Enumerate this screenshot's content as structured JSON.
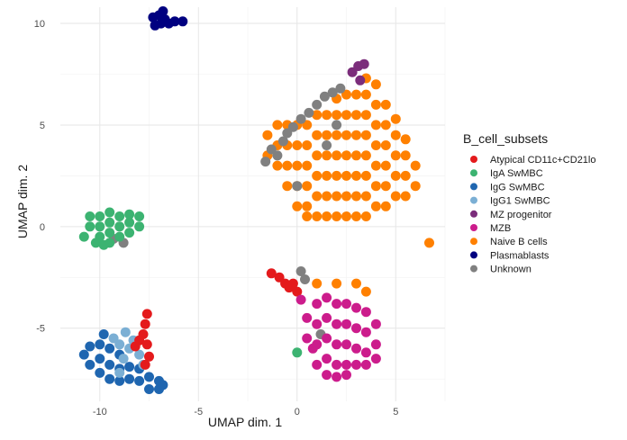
{
  "chart_data": {
    "type": "scatter",
    "title": "",
    "xlabel": "UMAP dim. 1",
    "ylabel": "UMAP dim. 2",
    "xlim": [
      -12.0,
      7.5
    ],
    "ylim": [
      -8.6,
      10.8
    ],
    "x_ticks": [
      -10,
      -5,
      0,
      5
    ],
    "y_ticks": [
      -5,
      0,
      5,
      10
    ],
    "x_tick_labels": [
      "-10",
      "-5",
      "0",
      "5"
    ],
    "y_tick_labels": [
      "-5",
      "0",
      "5",
      "10"
    ],
    "grid": true,
    "legend": {
      "title": "B_cell_subsets",
      "position": "right",
      "entries": [
        {
          "label": "Atypical CD11c+CD21lo",
          "color": "#E41A1C"
        },
        {
          "label": "IgA SwMBC",
          "color": "#3CB371"
        },
        {
          "label": "IgG SwMBC",
          "color": "#1F66B0"
        },
        {
          "label": "IgG1 SwMBC",
          "color": "#7BAFD4"
        },
        {
          "label": "MZ progenitor",
          "color": "#7B2D7B"
        },
        {
          "label": "MZB",
          "color": "#CC1C8C"
        },
        {
          "label": "Naive B cells",
          "color": "#FF8000"
        },
        {
          "label": "Plasmablasts",
          "color": "#000080"
        },
        {
          "label": "Unknown",
          "color": "#808080"
        }
      ]
    },
    "series": [
      {
        "name": "Naive B cells",
        "color": "#FF8000",
        "points": [
          [
            -1.5,
            3.5
          ],
          [
            -1.5,
            4.5
          ],
          [
            -1.0,
            3.0
          ],
          [
            -1.0,
            4.0
          ],
          [
            -1.0,
            5.0
          ],
          [
            -0.5,
            2.0
          ],
          [
            -0.5,
            3.0
          ],
          [
            -0.5,
            4.0
          ],
          [
            -0.5,
            5.0
          ],
          [
            0.0,
            1.0
          ],
          [
            0.0,
            2.0
          ],
          [
            0.0,
            3.0
          ],
          [
            0.0,
            4.0
          ],
          [
            0.0,
            5.0
          ],
          [
            0.5,
            1.0
          ],
          [
            0.5,
            2.0
          ],
          [
            0.5,
            3.0
          ],
          [
            0.5,
            4.0
          ],
          [
            0.5,
            5.0
          ],
          [
            1.0,
            0.5
          ],
          [
            1.0,
            1.5
          ],
          [
            1.0,
            2.5
          ],
          [
            1.0,
            3.5
          ],
          [
            1.0,
            4.5
          ],
          [
            1.0,
            5.5
          ],
          [
            1.5,
            0.5
          ],
          [
            1.5,
            1.5
          ],
          [
            1.5,
            2.5
          ],
          [
            1.5,
            3.5
          ],
          [
            1.5,
            4.5
          ],
          [
            1.5,
            5.5
          ],
          [
            2.0,
            0.5
          ],
          [
            2.0,
            1.5
          ],
          [
            2.0,
            2.5
          ],
          [
            2.0,
            3.5
          ],
          [
            2.0,
            4.5
          ],
          [
            2.0,
            5.5
          ],
          [
            2.0,
            6.3
          ],
          [
            2.5,
            0.5
          ],
          [
            2.5,
            1.5
          ],
          [
            2.5,
            2.5
          ],
          [
            2.5,
            3.5
          ],
          [
            2.5,
            4.5
          ],
          [
            2.5,
            5.5
          ],
          [
            2.5,
            6.5
          ],
          [
            3.0,
            0.5
          ],
          [
            3.0,
            1.5
          ],
          [
            3.0,
            2.5
          ],
          [
            3.0,
            3.5
          ],
          [
            3.0,
            4.5
          ],
          [
            3.0,
            5.5
          ],
          [
            3.0,
            6.5
          ],
          [
            3.5,
            0.5
          ],
          [
            3.5,
            1.5
          ],
          [
            3.5,
            2.5
          ],
          [
            3.5,
            3.5
          ],
          [
            3.5,
            4.5
          ],
          [
            3.5,
            5.5
          ],
          [
            3.5,
            6.5
          ],
          [
            3.5,
            7.3
          ],
          [
            4.0,
            1.0
          ],
          [
            4.0,
            2.0
          ],
          [
            4.0,
            3.0
          ],
          [
            4.0,
            4.0
          ],
          [
            4.0,
            5.0
          ],
          [
            4.0,
            6.0
          ],
          [
            4.0,
            7.0
          ],
          [
            4.5,
            1.0
          ],
          [
            4.5,
            2.0
          ],
          [
            4.5,
            3.0
          ],
          [
            4.5,
            4.0
          ],
          [
            4.5,
            5.0
          ],
          [
            4.5,
            6.0
          ],
          [
            5.0,
            1.5
          ],
          [
            5.0,
            2.5
          ],
          [
            5.0,
            3.5
          ],
          [
            5.0,
            4.5
          ],
          [
            5.0,
            5.3
          ],
          [
            5.5,
            1.5
          ],
          [
            5.5,
            2.5
          ],
          [
            5.5,
            3.5
          ],
          [
            5.5,
            4.3
          ],
          [
            6.0,
            2.0
          ],
          [
            6.0,
            3.0
          ],
          [
            0.5,
            0.5
          ],
          [
            6.7,
            -0.8
          ],
          [
            1.0,
            -2.8
          ],
          [
            2.0,
            -2.8
          ],
          [
            3.0,
            -2.8
          ],
          [
            3.5,
            -3.2
          ]
        ]
      },
      {
        "name": "Unknown",
        "color": "#808080",
        "points": [
          [
            -1.6,
            3.2
          ],
          [
            -1.3,
            3.8
          ],
          [
            -1.0,
            3.5
          ],
          [
            -0.7,
            4.2
          ],
          [
            -0.5,
            4.6
          ],
          [
            -0.2,
            4.9
          ],
          [
            0.2,
            5.3
          ],
          [
            0.6,
            5.6
          ],
          [
            1.0,
            6.0
          ],
          [
            1.4,
            6.4
          ],
          [
            1.8,
            6.6
          ],
          [
            2.2,
            6.8
          ],
          [
            2.0,
            5.0
          ],
          [
            1.5,
            4.0
          ],
          [
            0.0,
            2.0
          ],
          [
            0.2,
            -2.2
          ],
          [
            0.4,
            -2.6
          ],
          [
            -9.3,
            -0.6
          ],
          [
            -8.8,
            -0.8
          ],
          [
            1.2,
            -5.3
          ]
        ]
      },
      {
        "name": "MZ progenitor",
        "color": "#7B2D7B",
        "points": [
          [
            2.8,
            7.6
          ],
          [
            3.1,
            7.9
          ],
          [
            3.4,
            8.0
          ],
          [
            3.2,
            7.2
          ]
        ]
      },
      {
        "name": "Plasmablasts",
        "color": "#000080",
        "points": [
          [
            -7.3,
            10.3
          ],
          [
            -7.0,
            10.4
          ],
          [
            -6.7,
            10.2
          ],
          [
            -6.9,
            10.0
          ],
          [
            -7.2,
            9.9
          ],
          [
            -6.5,
            10.0
          ],
          [
            -6.2,
            10.1
          ],
          [
            -5.8,
            10.1
          ],
          [
            -6.8,
            10.6
          ]
        ]
      },
      {
        "name": "IgA SwMBC",
        "color": "#3CB371",
        "points": [
          [
            -10.8,
            -0.5
          ],
          [
            -10.5,
            0.0
          ],
          [
            -10.5,
            0.5
          ],
          [
            -10.0,
            -0.5
          ],
          [
            -10.0,
            0.0
          ],
          [
            -10.0,
            0.5
          ],
          [
            -9.5,
            -0.8
          ],
          [
            -9.5,
            -0.3
          ],
          [
            -9.5,
            0.2
          ],
          [
            -9.5,
            0.7
          ],
          [
            -9.0,
            -0.5
          ],
          [
            -9.0,
            0.0
          ],
          [
            -9.0,
            0.5
          ],
          [
            -8.5,
            -0.3
          ],
          [
            -8.5,
            0.2
          ],
          [
            -8.5,
            0.6
          ],
          [
            -8.0,
            0.0
          ],
          [
            -8.0,
            0.5
          ],
          [
            -10.2,
            -0.8
          ],
          [
            -9.8,
            -0.9
          ],
          [
            0.0,
            -6.2
          ]
        ]
      },
      {
        "name": "IgG SwMBC",
        "color": "#1F66B0",
        "points": [
          [
            -10.8,
            -6.3
          ],
          [
            -10.5,
            -6.8
          ],
          [
            -10.5,
            -5.9
          ],
          [
            -10.0,
            -7.2
          ],
          [
            -10.0,
            -6.5
          ],
          [
            -10.0,
            -5.8
          ],
          [
            -9.5,
            -7.5
          ],
          [
            -9.5,
            -6.8
          ],
          [
            -9.5,
            -6.0
          ],
          [
            -9.0,
            -7.6
          ],
          [
            -9.0,
            -7.0
          ],
          [
            -9.0,
            -6.3
          ],
          [
            -8.5,
            -7.5
          ],
          [
            -8.5,
            -6.9
          ],
          [
            -8.0,
            -7.6
          ],
          [
            -8.0,
            -7.0
          ],
          [
            -7.5,
            -8.0
          ],
          [
            -7.5,
            -7.4
          ],
          [
            -7.0,
            -8.0
          ],
          [
            -7.0,
            -7.6
          ],
          [
            -6.8,
            -7.8
          ],
          [
            -9.8,
            -5.3
          ]
        ]
      },
      {
        "name": "IgG1 SwMBC",
        "color": "#7BAFD4",
        "points": [
          [
            -9.3,
            -5.5
          ],
          [
            -9.0,
            -5.8
          ],
          [
            -8.7,
            -5.2
          ],
          [
            -8.5,
            -6.0
          ],
          [
            -8.8,
            -6.5
          ],
          [
            -8.3,
            -5.6
          ],
          [
            -8.0,
            -6.3
          ],
          [
            -7.8,
            -6.8
          ],
          [
            -9.0,
            -7.2
          ]
        ]
      },
      {
        "name": "Atypical CD11c+CD21lo",
        "color": "#E41A1C",
        "points": [
          [
            -7.6,
            -4.3
          ],
          [
            -7.7,
            -4.8
          ],
          [
            -7.8,
            -5.3
          ],
          [
            -8.0,
            -5.6
          ],
          [
            -8.2,
            -5.9
          ],
          [
            -7.6,
            -5.8
          ],
          [
            -7.5,
            -6.4
          ],
          [
            -7.7,
            -6.8
          ],
          [
            -1.3,
            -2.3
          ],
          [
            -0.9,
            -2.5
          ],
          [
            -0.6,
            -2.8
          ],
          [
            -0.2,
            -2.8
          ],
          [
            0.0,
            -3.2
          ],
          [
            -0.4,
            -3.0
          ]
        ]
      },
      {
        "name": "MZB",
        "color": "#CC1C8C",
        "points": [
          [
            0.2,
            -3.6
          ],
          [
            0.5,
            -4.5
          ],
          [
            0.5,
            -5.5
          ],
          [
            0.8,
            -6.0
          ],
          [
            1.0,
            -3.8
          ],
          [
            1.0,
            -4.8
          ],
          [
            1.0,
            -5.8
          ],
          [
            1.0,
            -6.8
          ],
          [
            1.5,
            -3.5
          ],
          [
            1.5,
            -4.5
          ],
          [
            1.5,
            -5.5
          ],
          [
            1.5,
            -6.5
          ],
          [
            1.5,
            -7.3
          ],
          [
            2.0,
            -3.8
          ],
          [
            2.0,
            -4.8
          ],
          [
            2.0,
            -5.8
          ],
          [
            2.0,
            -6.8
          ],
          [
            2.0,
            -7.4
          ],
          [
            2.5,
            -3.8
          ],
          [
            2.5,
            -4.8
          ],
          [
            2.5,
            -5.8
          ],
          [
            2.5,
            -6.8
          ],
          [
            2.5,
            -7.3
          ],
          [
            3.0,
            -4.0
          ],
          [
            3.0,
            -5.0
          ],
          [
            3.0,
            -6.0
          ],
          [
            3.0,
            -6.8
          ],
          [
            3.5,
            -4.2
          ],
          [
            3.5,
            -5.2
          ],
          [
            3.5,
            -6.2
          ],
          [
            3.5,
            -6.8
          ],
          [
            4.0,
            -4.8
          ],
          [
            4.0,
            -5.8
          ],
          [
            4.0,
            -6.5
          ]
        ]
      }
    ]
  }
}
